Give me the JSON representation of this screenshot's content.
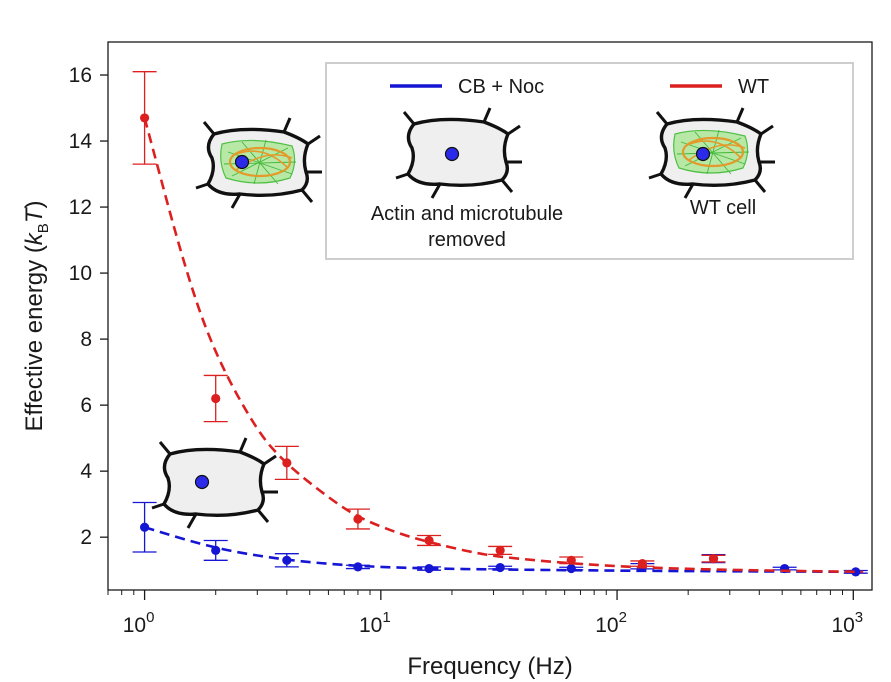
{
  "chart_data": {
    "type": "scatter",
    "xlabel": "Frequency (Hz)",
    "ylabel_main": "Effective energy (",
    "ylabel_k": "k",
    "ylabel_sub": "B",
    "ylabel_T": "T",
    "ylabel_close": ")",
    "x_scale": "log",
    "xlim": [
      0.7,
      1200
    ],
    "ylim": [
      0.4,
      17.0
    ],
    "x_ticks": [
      {
        "value": 1,
        "base": "10",
        "exp": "0"
      },
      {
        "value": 10,
        "base": "10",
        "exp": "1"
      },
      {
        "value": 100,
        "base": "10",
        "exp": "2"
      },
      {
        "value": 1000,
        "base": "10",
        "exp": "3"
      }
    ],
    "y_ticks": [
      2,
      4,
      6,
      8,
      10,
      12,
      14,
      16
    ],
    "grid": false,
    "legend": "top-right",
    "series": [
      {
        "name": "CB + Noc",
        "color": "#1515d4",
        "x": [
          1,
          2,
          4,
          8,
          16,
          32,
          64,
          128,
          256,
          512,
          1024
        ],
        "y": [
          2.3,
          1.6,
          1.3,
          1.1,
          1.05,
          1.08,
          1.05,
          1.12,
          1.35,
          1.05,
          0.95
        ],
        "err": [
          0.75,
          0.3,
          0.2,
          0.05,
          0.05,
          0.04,
          0.04,
          0.08,
          0.12,
          0.04,
          0.04
        ],
        "fit_x": [
          1,
          2,
          4,
          8,
          16,
          32,
          64,
          128,
          256,
          512,
          1100
        ],
        "fit_y": [
          2.3,
          1.65,
          1.3,
          1.12,
          1.05,
          1.02,
          1.0,
          0.98,
          0.97,
          0.96,
          0.95
        ]
      },
      {
        "name": "WT",
        "color": "#dc2020",
        "x": [
          1,
          2,
          4,
          8,
          16,
          32,
          64,
          128,
          256
        ],
        "y": [
          14.7,
          6.2,
          4.25,
          2.55,
          1.9,
          1.6,
          1.3,
          1.2,
          1.35
        ],
        "err": [
          1.4,
          0.7,
          0.5,
          0.3,
          0.15,
          0.12,
          0.1,
          0.08,
          0.1
        ],
        "fit_x": [
          1,
          1.5,
          2,
          3,
          4,
          6,
          8,
          12,
          16,
          24,
          32,
          64,
          128,
          256,
          512,
          1100
        ],
        "fit_y": [
          14.7,
          10.0,
          7.5,
          5.2,
          4.2,
          3.2,
          2.6,
          2.1,
          1.85,
          1.55,
          1.4,
          1.2,
          1.08,
          1.02,
          0.98,
          0.95
        ]
      }
    ],
    "annotations": {
      "center_cell_caption_line1": "Actin and microtubule",
      "center_cell_caption_line2": "removed",
      "wt_cell_caption": "WT cell"
    }
  }
}
